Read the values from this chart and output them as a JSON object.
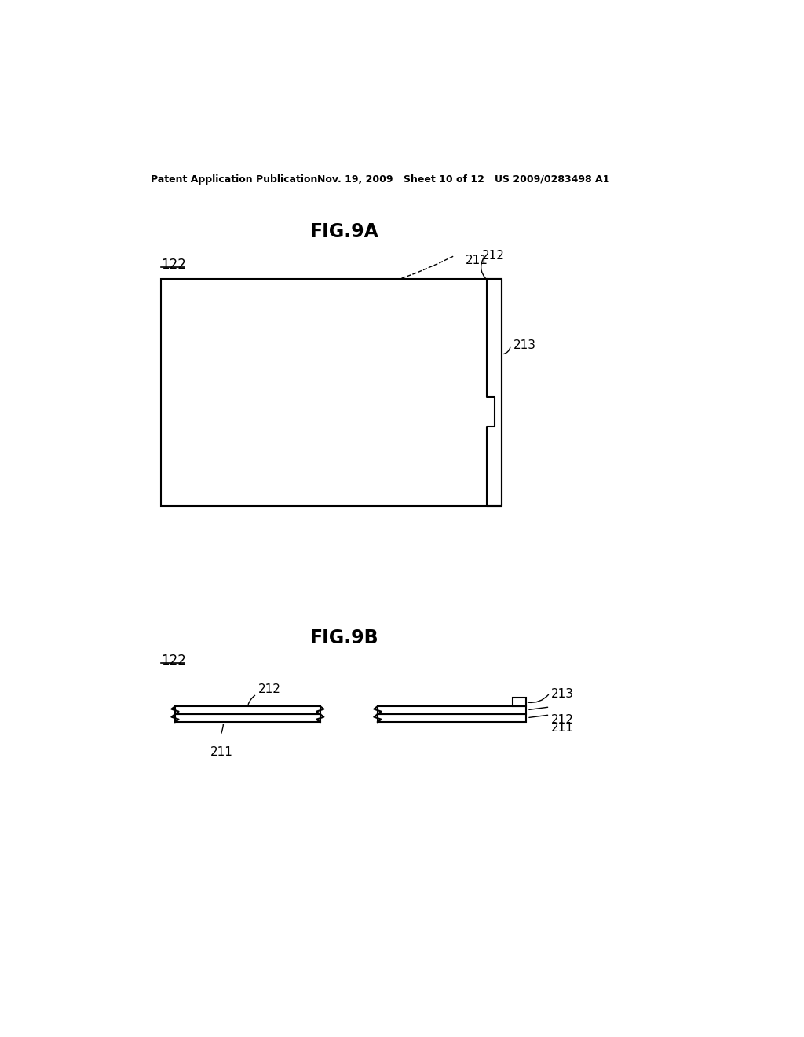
{
  "bg_color": "#ffffff",
  "header_text": "Patent Application Publication",
  "header_date": "Nov. 19, 2009",
  "header_sheet": "Sheet 10 of 12",
  "header_patent": "US 2009/0283498 A1",
  "fig9a_title": "FIG.9A",
  "fig9b_title": "FIG.9B",
  "label_122_a": "122",
  "label_211_a": "211",
  "label_212_a": "212",
  "label_213_a": "213",
  "label_122_b": "122",
  "label_211_b1": "211",
  "label_212_b1": "212",
  "label_211_b2": "211",
  "label_212_b2": "212",
  "label_213_b2": "213"
}
